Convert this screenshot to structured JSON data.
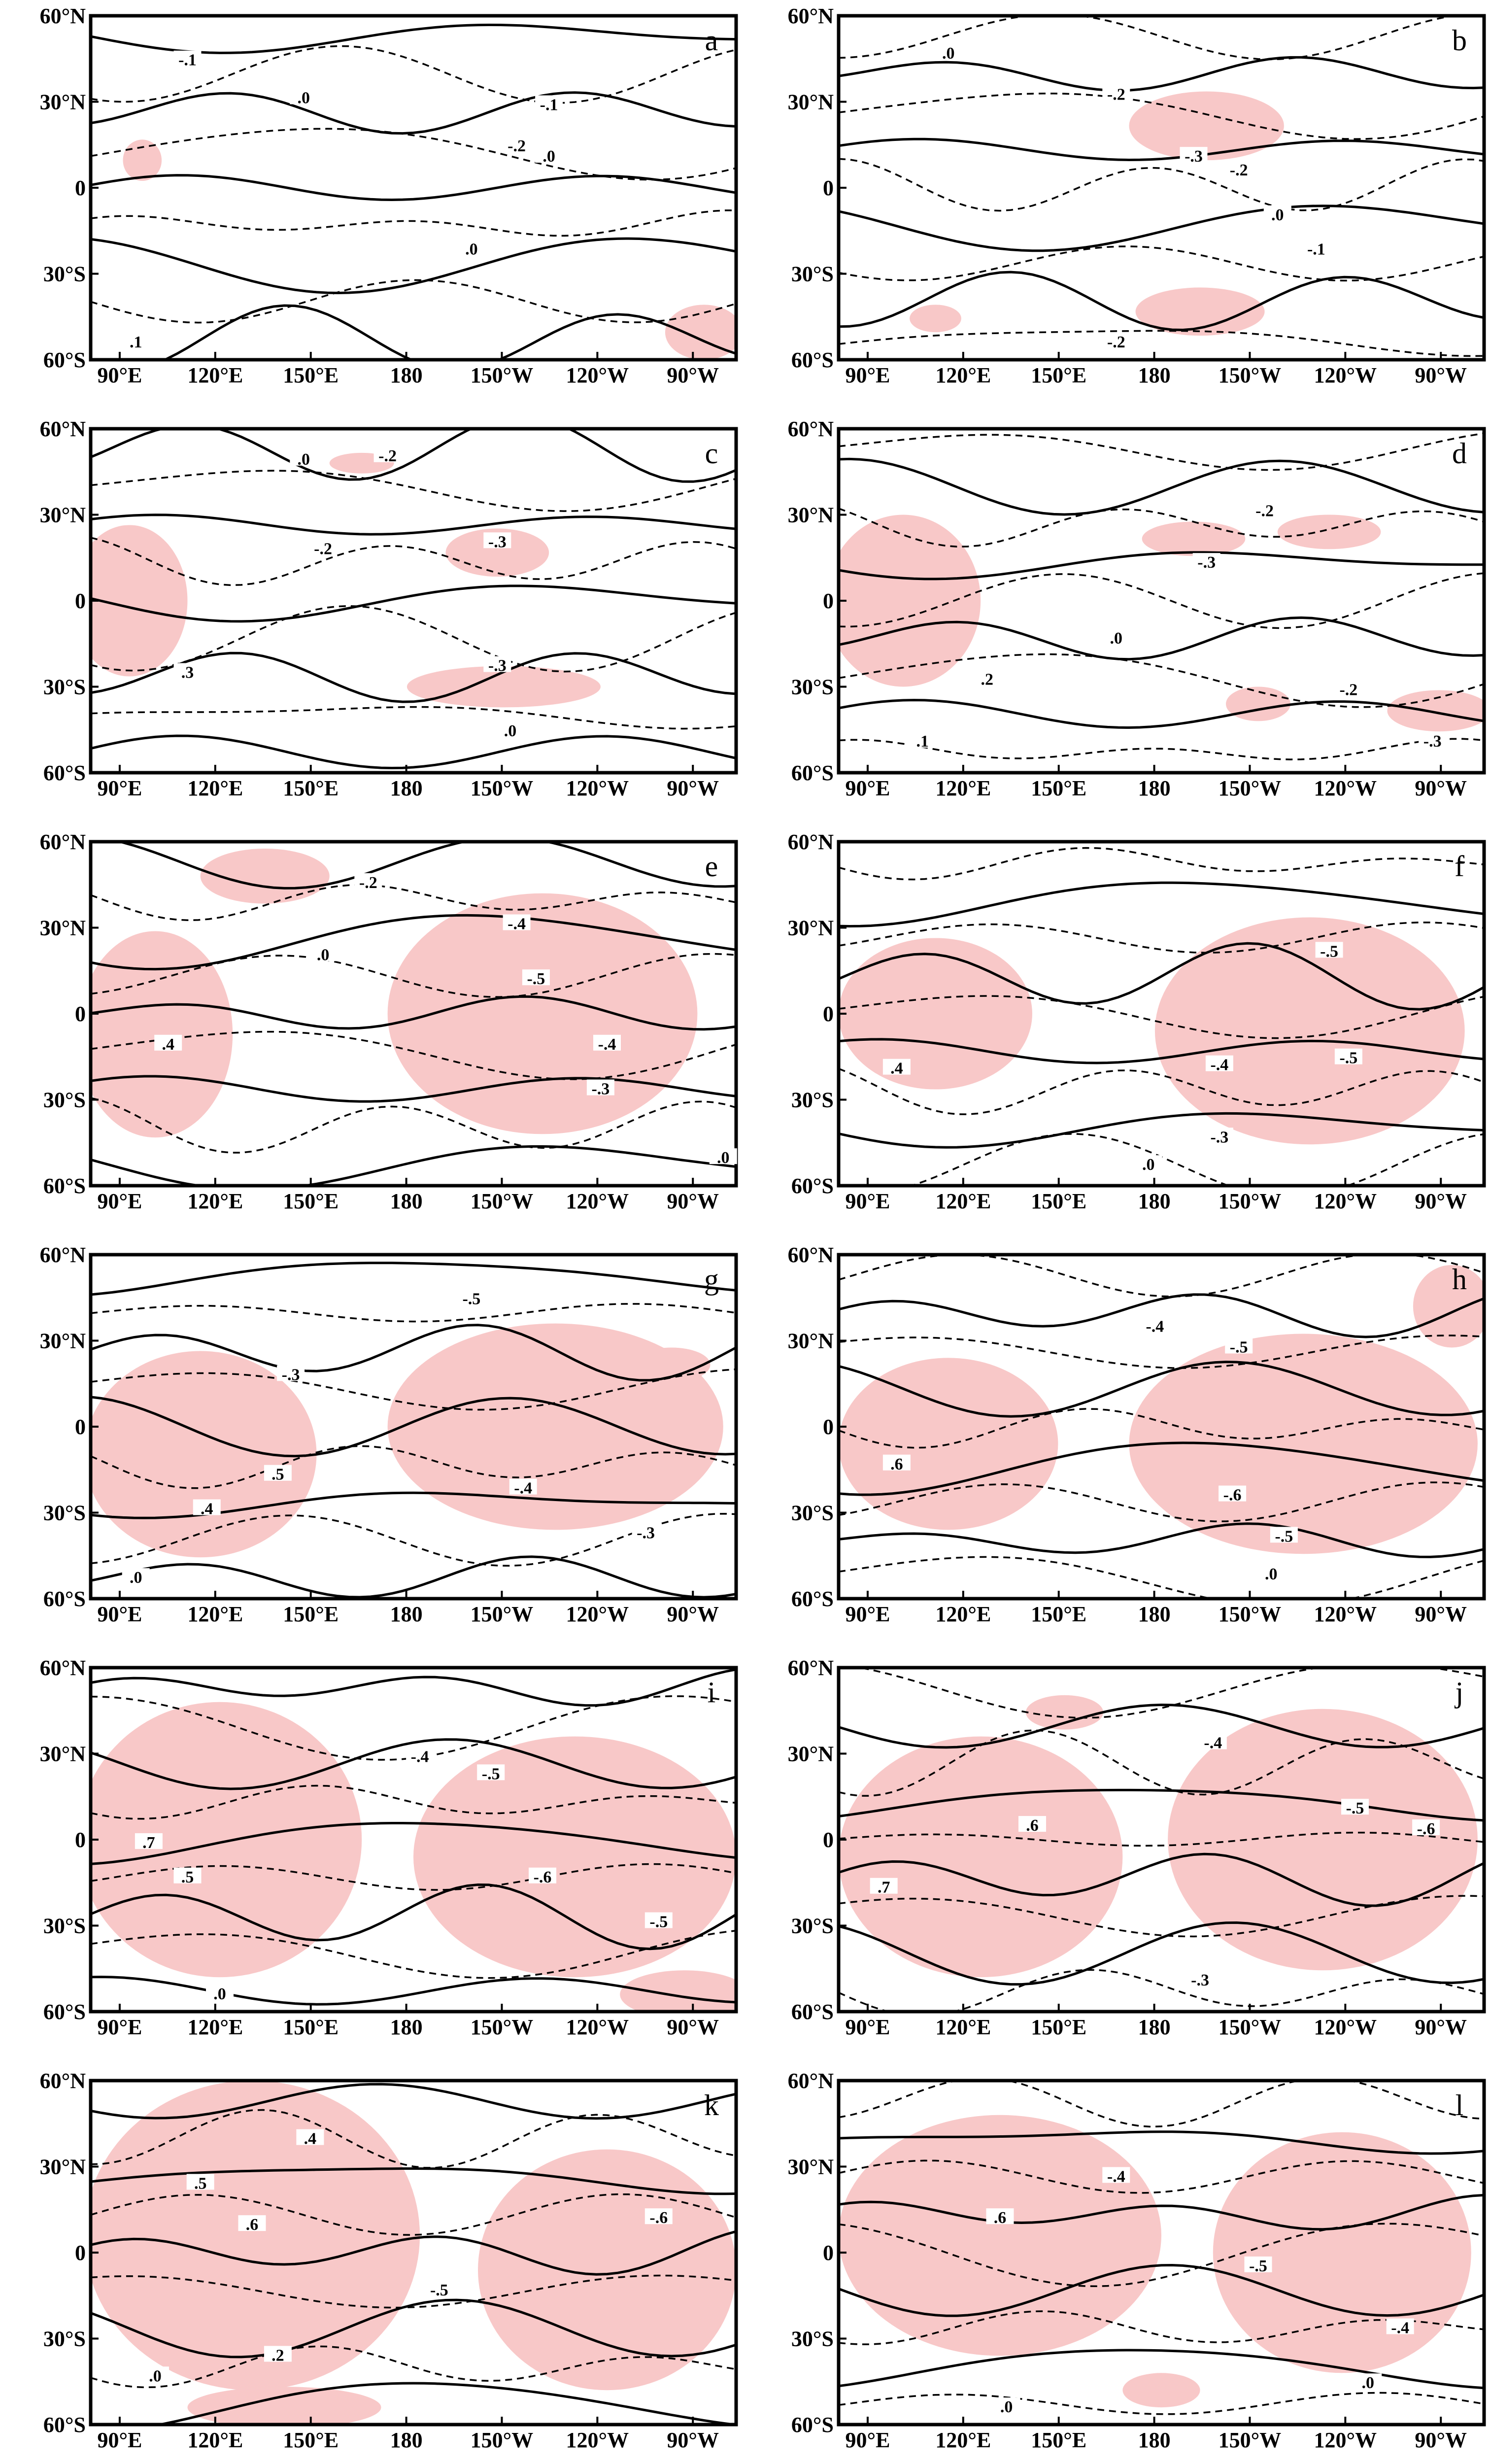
{
  "lat_labels": [
    "60°N",
    "30°N",
    "0",
    "30°S",
    "60°S"
  ],
  "lon_labels": [
    "90°E",
    "120°E",
    "150°E",
    "180",
    "150°W",
    "120°W",
    "90°W"
  ],
  "panels": [
    {
      "label": "a",
      "contour_labels": [
        "-.1",
        ".0",
        "-.1",
        "-.2",
        ".0",
        ".0",
        ".1"
      ]
    },
    {
      "label": "b",
      "contour_labels": [
        ".0",
        "-.2",
        "-.3",
        "-.2",
        ".0",
        "-.1",
        "-.2"
      ]
    },
    {
      "label": "c",
      "contour_labels": [
        ".0",
        "-.2",
        "-.3",
        "-.2",
        "-.3",
        ".0",
        ".3"
      ]
    },
    {
      "label": "d",
      "contour_labels": [
        "-.2",
        "-.3",
        ".0",
        ".2",
        "-.2",
        "-.3",
        ".1"
      ]
    },
    {
      "label": "e",
      "contour_labels": [
        "-.2",
        ".0",
        "-.4",
        ".4",
        "-.5",
        "-.4",
        "-.3",
        ".0"
      ]
    },
    {
      "label": "f",
      "contour_labels": [
        "-.5",
        ".4",
        "-.4",
        "-.5",
        "-.3",
        ".0"
      ]
    },
    {
      "label": "g",
      "contour_labels": [
        "-.5",
        "-.3",
        ".5",
        ".4",
        "-.4",
        "-.3",
        ".0"
      ]
    },
    {
      "label": "h",
      "contour_labels": [
        "-.4",
        "-.5",
        ".6",
        "-.6",
        "-.5",
        ".0"
      ]
    },
    {
      "label": "i",
      "contour_labels": [
        "-.4",
        "-.5",
        ".7",
        ".5",
        "-.6",
        ".0",
        "-.5"
      ]
    },
    {
      "label": "j",
      "contour_labels": [
        "-.4",
        "-.5",
        ".7",
        ".6",
        "-.6",
        "-.3"
      ]
    },
    {
      "label": "k",
      "contour_labels": [
        ".4",
        ".5",
        ".6",
        "-.6",
        "-.5",
        ".2",
        ".0"
      ]
    },
    {
      "label": "l",
      "contour_labels": [
        "-.4",
        ".6",
        "-.5",
        "-.4",
        ".0",
        ".0"
      ]
    }
  ]
}
